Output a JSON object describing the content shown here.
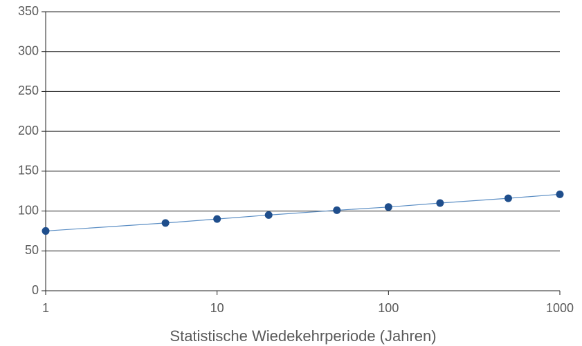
{
  "chart_data": {
    "type": "line",
    "x_label": "Statistische Wiedekehrperiode (Jahren)",
    "x": [
      1,
      5,
      10,
      20,
      50,
      100,
      200,
      500,
      1000
    ],
    "series": [
      {
        "color": "#1f4e8c",
        "line_color": "#5b8ec4",
        "values": [
          75,
          85,
          90,
          95,
          101,
          105,
          110,
          116,
          121
        ]
      }
    ],
    "xscale": "log",
    "xlim": [
      1,
      1000
    ],
    "xticks": [
      1,
      10,
      100,
      1000
    ],
    "ylim": [
      0,
      350
    ],
    "yticks": [
      0,
      50,
      100,
      150,
      200,
      250,
      300,
      350
    ],
    "grid": true
  }
}
